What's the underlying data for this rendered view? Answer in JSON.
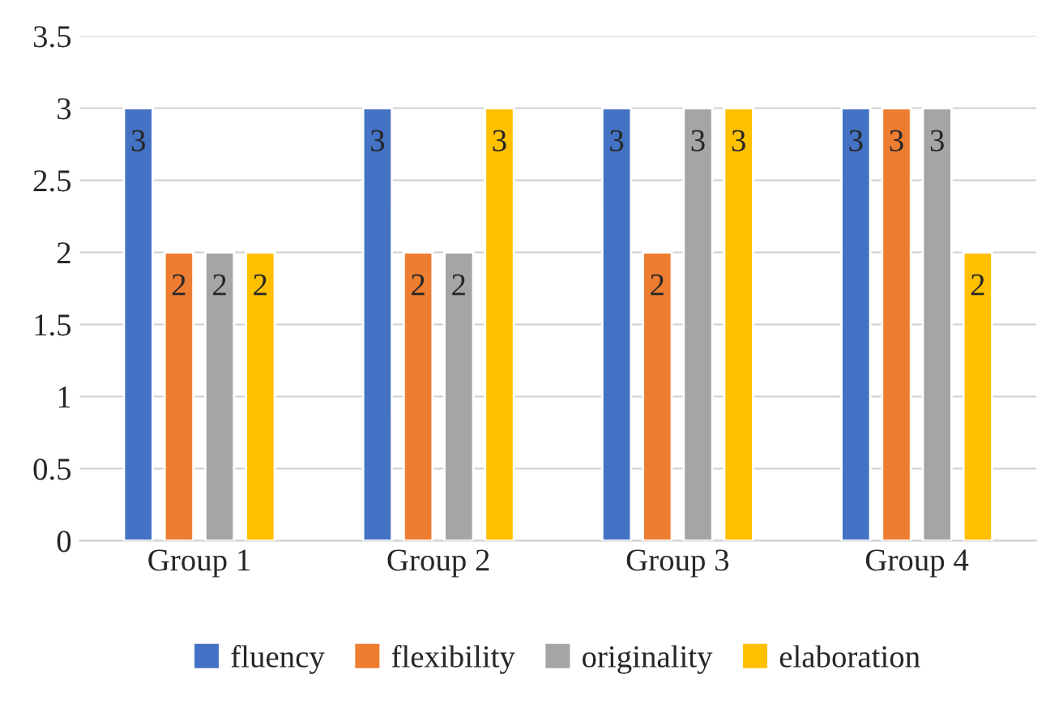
{
  "chart_data": {
    "type": "bar",
    "categories": [
      "Group 1",
      "Group 2",
      "Group 3",
      "Group 4"
    ],
    "series": [
      {
        "name": "fluency",
        "color": "#4472c4",
        "values": [
          3,
          3,
          3,
          3
        ]
      },
      {
        "name": "flexibility",
        "color": "#ed7d31",
        "values": [
          2,
          2,
          2,
          3
        ]
      },
      {
        "name": "originality",
        "color": "#a5a5a5",
        "values": [
          2,
          2,
          3,
          3
        ]
      },
      {
        "name": "elaboration",
        "color": "#ffc000",
        "values": [
          2,
          3,
          3,
          2
        ]
      }
    ],
    "ylim": [
      0,
      3.5
    ],
    "yticks": [
      0,
      0.5,
      1,
      1.5,
      2,
      2.5,
      3,
      3.5
    ],
    "grid": "y",
    "legend": "bottom",
    "data_labels": true
  }
}
